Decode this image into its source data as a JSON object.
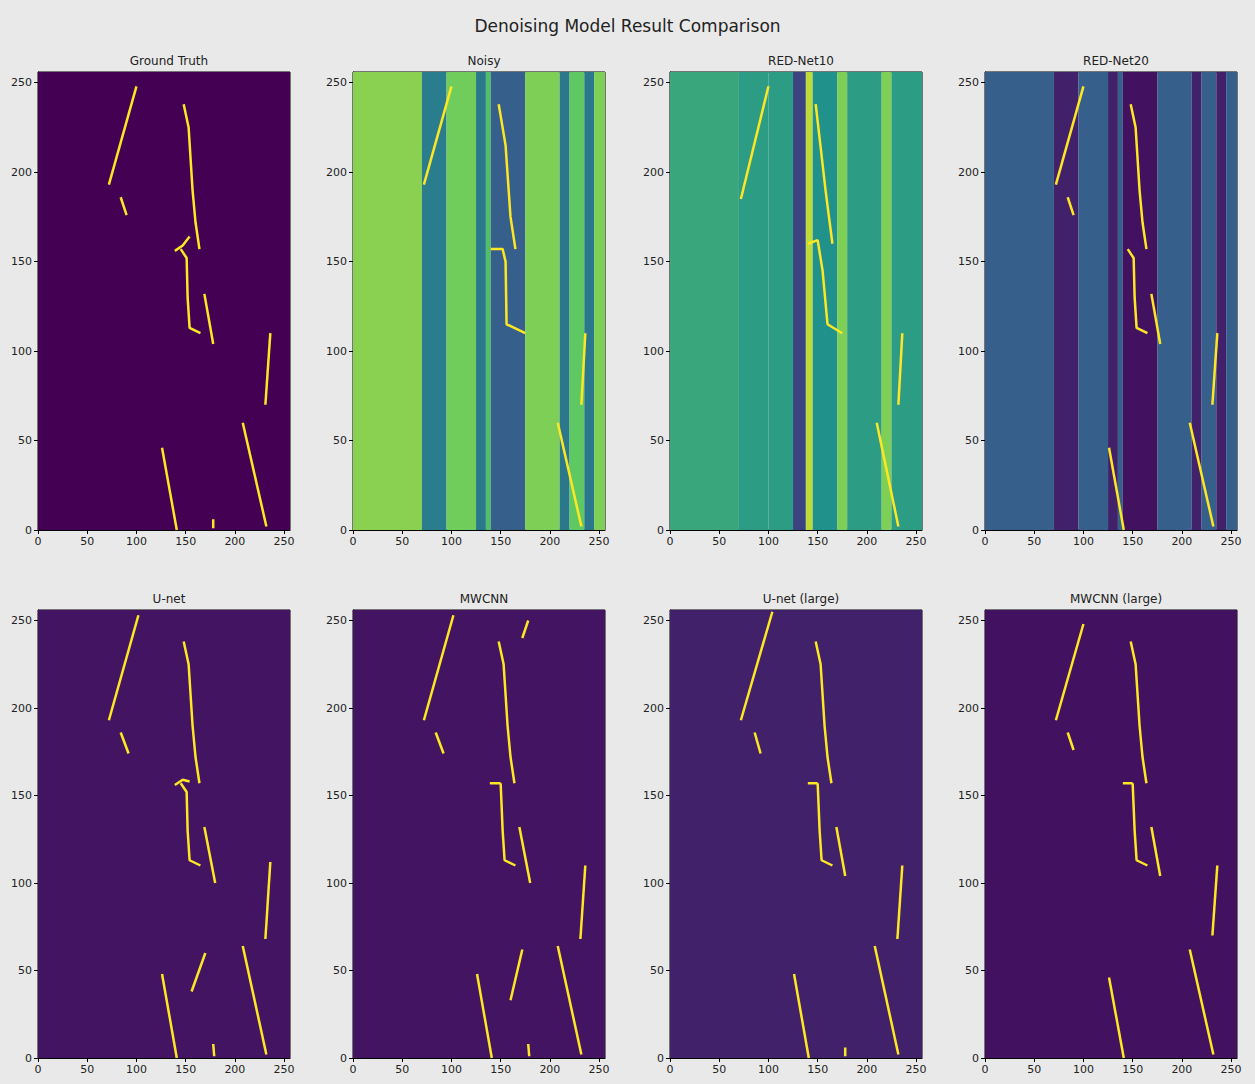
{
  "title": "Denoising Model Result Comparison",
  "chart_data": [
    {
      "type": "image",
      "title": "Ground Truth",
      "color": "#fde725",
      "xlim": [
        0,
        256
      ],
      "ylim": [
        0,
        256
      ],
      "xticks": [
        0,
        50,
        100,
        150,
        200,
        250
      ],
      "yticks": [
        0,
        50,
        100,
        150,
        200,
        250
      ],
      "bands": [
        [
          0,
          256,
          0
        ]
      ],
      "strokes": [
        [
          [
            72,
            193
          ],
          [
            100,
            248
          ]
        ],
        [
          [
            84,
            186
          ],
          [
            90,
            176
          ]
        ],
        [
          [
            148,
            238
          ],
          [
            153,
            225
          ],
          [
            157,
            190
          ],
          [
            160,
            172
          ],
          [
            164,
            157
          ]
        ],
        [
          [
            139,
            156
          ],
          [
            147,
            159
          ],
          [
            154,
            164
          ]
        ],
        [
          [
            145,
            157
          ],
          [
            151,
            152
          ],
          [
            152,
            130
          ],
          [
            154,
            113
          ],
          [
            165,
            110
          ]
        ],
        [
          [
            169,
            132
          ],
          [
            178,
            104
          ]
        ],
        [
          [
            236,
            110
          ],
          [
            231,
            70
          ]
        ],
        [
          [
            126,
            46
          ],
          [
            141,
            0
          ]
        ],
        [
          [
            208,
            60
          ],
          [
            232,
            2
          ]
        ],
        [
          [
            178,
            6
          ],
          [
            178,
            1
          ]
        ]
      ]
    },
    {
      "type": "image",
      "title": "Noisy",
      "color": "#fde725",
      "xlim": [
        0,
        256
      ],
      "ylim": [
        0,
        256
      ],
      "xticks": [
        0,
        50,
        100,
        150,
        200,
        250
      ],
      "yticks": [
        0,
        50,
        100,
        150,
        200,
        250
      ],
      "bands": [
        [
          0,
          70,
          0.82
        ],
        [
          70,
          95,
          0.42
        ],
        [
          95,
          125,
          0.78
        ],
        [
          125,
          135,
          0.4
        ],
        [
          135,
          140,
          0.7
        ],
        [
          140,
          175,
          0.3
        ],
        [
          175,
          210,
          0.8
        ],
        [
          210,
          220,
          0.4
        ],
        [
          220,
          235,
          0.75
        ],
        [
          235,
          245,
          0.4
        ],
        [
          245,
          256,
          0.8
        ]
      ],
      "strokes": [
        [
          [
            72,
            193
          ],
          [
            100,
            248
          ]
        ],
        [
          [
            148,
            238
          ],
          [
            155,
            215
          ],
          [
            160,
            175
          ],
          [
            165,
            157
          ]
        ],
        [
          [
            140,
            157
          ],
          [
            152,
            157
          ],
          [
            155,
            150
          ],
          [
            156,
            115
          ],
          [
            175,
            110
          ]
        ],
        [
          [
            236,
            110
          ],
          [
            232,
            70
          ]
        ],
        [
          [
            208,
            60
          ],
          [
            232,
            2
          ]
        ]
      ]
    },
    {
      "type": "image",
      "title": "RED-Net10",
      "color": "#fde725",
      "xlim": [
        0,
        256
      ],
      "ylim": [
        0,
        256
      ],
      "xticks": [
        0,
        50,
        100,
        150,
        200,
        250
      ],
      "yticks": [
        0,
        50,
        100,
        150,
        200,
        250
      ],
      "bands": [
        [
          0,
          70,
          0.6
        ],
        [
          70,
          100,
          0.55
        ],
        [
          100,
          125,
          0.55
        ],
        [
          125,
          138,
          0.2
        ],
        [
          138,
          145,
          0.9
        ],
        [
          145,
          170,
          0.5
        ],
        [
          170,
          180,
          0.8
        ],
        [
          180,
          215,
          0.55
        ],
        [
          215,
          225,
          0.8
        ],
        [
          225,
          256,
          0.55
        ]
      ],
      "strokes": [
        [
          [
            72,
            185
          ],
          [
            100,
            248
          ]
        ],
        [
          [
            148,
            238
          ],
          [
            158,
            190
          ],
          [
            165,
            160
          ]
        ],
        [
          [
            140,
            160
          ],
          [
            150,
            162
          ],
          [
            155,
            145
          ],
          [
            160,
            115
          ],
          [
            175,
            110
          ]
        ],
        [
          [
            210,
            60
          ],
          [
            232,
            2
          ]
        ],
        [
          [
            236,
            110
          ],
          [
            232,
            70
          ]
        ]
      ]
    },
    {
      "type": "image",
      "title": "RED-Net20",
      "color": "#fde725",
      "xlim": [
        0,
        256
      ],
      "ylim": [
        0,
        256
      ],
      "xticks": [
        0,
        50,
        100,
        150,
        200,
        250
      ],
      "yticks": [
        0,
        50,
        100,
        150,
        200,
        250
      ],
      "bands": [
        [
          0,
          70,
          0.3
        ],
        [
          70,
          95,
          0.1
        ],
        [
          95,
          125,
          0.3
        ],
        [
          125,
          135,
          0.1
        ],
        [
          135,
          140,
          0.3
        ],
        [
          140,
          175,
          0.05
        ],
        [
          175,
          210,
          0.3
        ],
        [
          210,
          220,
          0.1
        ],
        [
          220,
          235,
          0.3
        ],
        [
          235,
          245,
          0.1
        ],
        [
          245,
          256,
          0.3
        ]
      ],
      "strokes": [
        [
          [
            72,
            193
          ],
          [
            100,
            248
          ]
        ],
        [
          [
            84,
            186
          ],
          [
            90,
            176
          ]
        ],
        [
          [
            148,
            238
          ],
          [
            153,
            225
          ],
          [
            157,
            190
          ],
          [
            160,
            172
          ],
          [
            164,
            157
          ]
        ],
        [
          [
            145,
            157
          ],
          [
            151,
            152
          ],
          [
            152,
            130
          ],
          [
            154,
            113
          ],
          [
            165,
            110
          ]
        ],
        [
          [
            169,
            132
          ],
          [
            178,
            104
          ]
        ],
        [
          [
            236,
            110
          ],
          [
            231,
            70
          ]
        ],
        [
          [
            126,
            46
          ],
          [
            141,
            0
          ]
        ],
        [
          [
            208,
            60
          ],
          [
            232,
            2
          ]
        ]
      ]
    },
    {
      "type": "image",
      "title": "U-net",
      "color": "#fde725",
      "xlim": [
        0,
        256
      ],
      "ylim": [
        0,
        256
      ],
      "xticks": [
        0,
        50,
        100,
        150,
        200,
        250
      ],
      "yticks": [
        0,
        50,
        100,
        150,
        200,
        250
      ],
      "bands": [
        [
          0,
          256,
          0.06
        ]
      ],
      "strokes": [
        [
          [
            72,
            193
          ],
          [
            102,
            253
          ]
        ],
        [
          [
            84,
            186
          ],
          [
            92,
            174
          ]
        ],
        [
          [
            148,
            238
          ],
          [
            153,
            225
          ],
          [
            157,
            190
          ],
          [
            160,
            172
          ],
          [
            164,
            157
          ]
        ],
        [
          [
            139,
            156
          ],
          [
            147,
            159
          ],
          [
            154,
            158
          ]
        ],
        [
          [
            145,
            157
          ],
          [
            151,
            152
          ],
          [
            152,
            130
          ],
          [
            154,
            113
          ],
          [
            165,
            110
          ]
        ],
        [
          [
            169,
            132
          ],
          [
            180,
            100
          ]
        ],
        [
          [
            236,
            112
          ],
          [
            231,
            68
          ]
        ],
        [
          [
            126,
            48
          ],
          [
            141,
            0
          ]
        ],
        [
          [
            208,
            64
          ],
          [
            232,
            2
          ]
        ],
        [
          [
            178,
            8
          ],
          [
            179,
            1
          ]
        ],
        [
          [
            156,
            38
          ],
          [
            170,
            60
          ]
        ]
      ]
    },
    {
      "type": "image",
      "title": "MWCNN",
      "color": "#fde725",
      "xlim": [
        0,
        256
      ],
      "ylim": [
        0,
        256
      ],
      "xticks": [
        0,
        50,
        100,
        150,
        200,
        250
      ],
      "yticks": [
        0,
        50,
        100,
        150,
        200,
        250
      ],
      "bands": [
        [
          0,
          256,
          0.06
        ]
      ],
      "strokes": [
        [
          [
            72,
            193
          ],
          [
            102,
            253
          ]
        ],
        [
          [
            84,
            186
          ],
          [
            92,
            174
          ]
        ],
        [
          [
            148,
            238
          ],
          [
            153,
            225
          ],
          [
            157,
            190
          ],
          [
            160,
            172
          ],
          [
            164,
            157
          ]
        ],
        [
          [
            139,
            157
          ],
          [
            150,
            157
          ]
        ],
        [
          [
            150,
            157
          ],
          [
            152,
            130
          ],
          [
            154,
            113
          ],
          [
            165,
            110
          ]
        ],
        [
          [
            169,
            132
          ],
          [
            180,
            100
          ]
        ],
        [
          [
            236,
            110
          ],
          [
            231,
            68
          ]
        ],
        [
          [
            126,
            48
          ],
          [
            141,
            0
          ]
        ],
        [
          [
            208,
            64
          ],
          [
            232,
            2
          ]
        ],
        [
          [
            160,
            33
          ],
          [
            172,
            62
          ]
        ],
        [
          [
            172,
            240
          ],
          [
            178,
            250
          ]
        ],
        [
          [
            178,
            8
          ],
          [
            179,
            1
          ]
        ]
      ]
    },
    {
      "type": "image",
      "title": "U-net (large)",
      "color": "#fde725",
      "xlim": [
        0,
        256
      ],
      "ylim": [
        0,
        256
      ],
      "xticks": [
        0,
        50,
        100,
        150,
        200,
        250
      ],
      "yticks": [
        0,
        50,
        100,
        150,
        200,
        250
      ],
      "bands": [
        [
          0,
          256,
          0.1
        ]
      ],
      "strokes": [
        [
          [
            72,
            193
          ],
          [
            104,
            255
          ]
        ],
        [
          [
            86,
            186
          ],
          [
            92,
            174
          ]
        ],
        [
          [
            148,
            238
          ],
          [
            153,
            225
          ],
          [
            157,
            190
          ],
          [
            160,
            172
          ],
          [
            164,
            157
          ]
        ],
        [
          [
            140,
            157
          ],
          [
            150,
            157
          ]
        ],
        [
          [
            150,
            157
          ],
          [
            152,
            130
          ],
          [
            154,
            113
          ],
          [
            165,
            110
          ]
        ],
        [
          [
            169,
            132
          ],
          [
            178,
            104
          ]
        ],
        [
          [
            236,
            110
          ],
          [
            231,
            68
          ]
        ],
        [
          [
            126,
            48
          ],
          [
            141,
            0
          ]
        ],
        [
          [
            208,
            64
          ],
          [
            232,
            2
          ]
        ],
        [
          [
            178,
            6
          ],
          [
            178,
            1
          ]
        ]
      ]
    },
    {
      "type": "image",
      "title": "MWCNN (large)",
      "color": "#fde725",
      "xlim": [
        0,
        256
      ],
      "ylim": [
        0,
        256
      ],
      "xticks": [
        0,
        50,
        100,
        150,
        200,
        250
      ],
      "yticks": [
        0,
        50,
        100,
        150,
        200,
        250
      ],
      "bands": [
        [
          0,
          256,
          0.05
        ]
      ],
      "strokes": [
        [
          [
            72,
            193
          ],
          [
            100,
            248
          ]
        ],
        [
          [
            84,
            186
          ],
          [
            90,
            176
          ]
        ],
        [
          [
            148,
            238
          ],
          [
            153,
            225
          ],
          [
            157,
            190
          ],
          [
            160,
            172
          ],
          [
            164,
            157
          ]
        ],
        [
          [
            140,
            157
          ],
          [
            150,
            157
          ]
        ],
        [
          [
            150,
            157
          ],
          [
            152,
            130
          ],
          [
            154,
            113
          ],
          [
            165,
            110
          ]
        ],
        [
          [
            169,
            132
          ],
          [
            178,
            104
          ]
        ],
        [
          [
            236,
            110
          ],
          [
            231,
            70
          ]
        ],
        [
          [
            126,
            46
          ],
          [
            141,
            0
          ]
        ],
        [
          [
            208,
            62
          ],
          [
            232,
            2
          ]
        ]
      ]
    }
  ]
}
